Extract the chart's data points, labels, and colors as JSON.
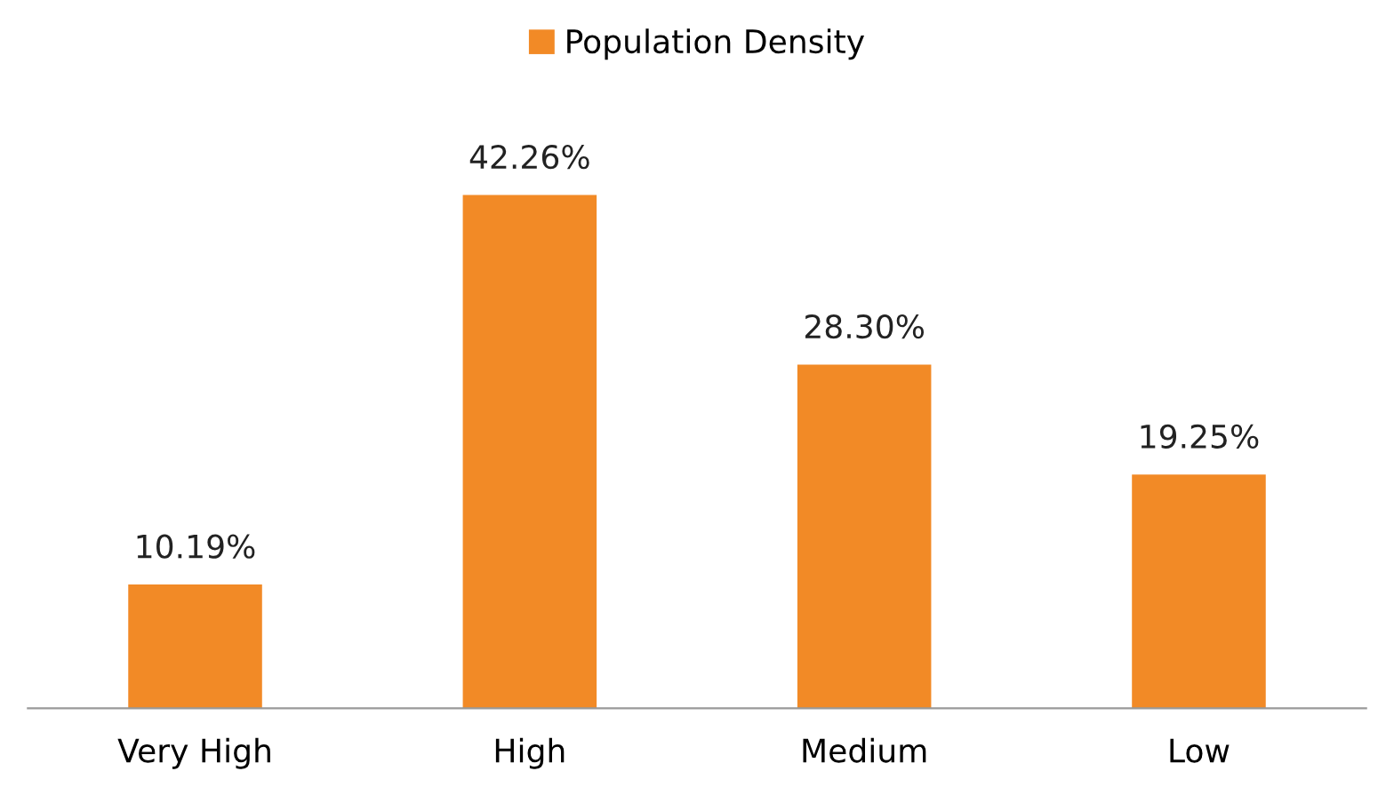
{
  "chart_data": {
    "type": "bar",
    "categories": [
      "Very High",
      "High",
      "Medium",
      "Low"
    ],
    "series": [
      {
        "name": "Population Density",
        "color": "#f28a26",
        "values": [
          10.19,
          42.26,
          28.3,
          19.25
        ],
        "value_labels": [
          "10.19%",
          "42.26%",
          "28.30%",
          "19.25%"
        ]
      }
    ],
    "legend": "top",
    "grid": false
  }
}
